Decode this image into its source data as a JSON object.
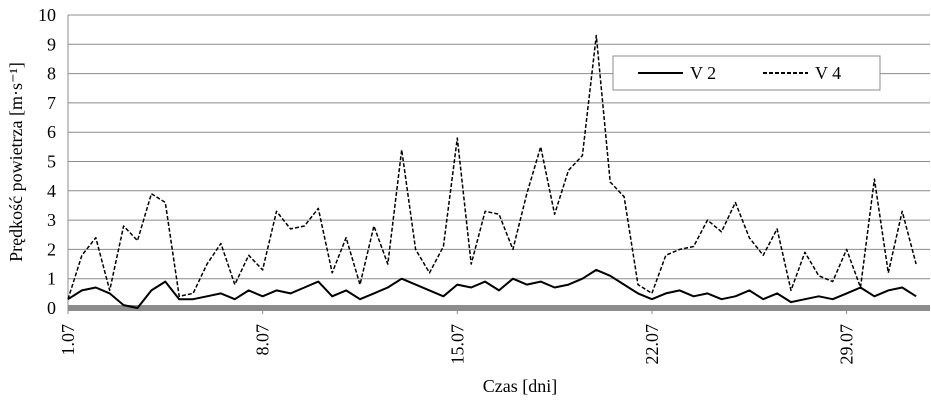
{
  "chart_data": {
    "type": "line",
    "x_label": "Czas [dni]",
    "y_label": "Prędkość powietrza [m·s⁻¹]",
    "x": [
      1,
      1.5,
      2,
      2.5,
      3,
      3.5,
      4,
      4.5,
      5,
      5.5,
      6,
      6.5,
      7,
      7.5,
      8,
      8.5,
      9,
      9.5,
      10,
      10.5,
      11,
      11.5,
      12,
      12.5,
      13,
      13.5,
      14,
      14.5,
      15,
      15.5,
      16,
      16.5,
      17,
      17.5,
      18,
      18.5,
      19,
      19.5,
      20,
      20.5,
      21,
      21.5,
      22,
      22.5,
      23,
      23.5,
      24,
      24.5,
      25,
      25.5,
      26,
      26.5,
      27,
      27.5,
      28,
      28.5,
      29,
      29.5,
      30,
      30.5,
      31,
      31.5
    ],
    "series": [
      {
        "name": "V 2",
        "color": "#000000",
        "dash": false,
        "values": [
          0.3,
          0.6,
          0.7,
          0.5,
          0.1,
          0.0,
          0.6,
          0.9,
          0.3,
          0.3,
          0.4,
          0.5,
          0.3,
          0.6,
          0.4,
          0.6,
          0.5,
          0.7,
          0.9,
          0.4,
          0.6,
          0.3,
          0.5,
          0.7,
          1.0,
          0.8,
          0.6,
          0.4,
          0.8,
          0.7,
          0.9,
          0.6,
          1.0,
          0.8,
          0.9,
          0.7,
          0.8,
          1.0,
          1.3,
          1.1,
          0.8,
          0.5,
          0.3,
          0.5,
          0.6,
          0.4,
          0.5,
          0.3,
          0.4,
          0.6,
          0.3,
          0.5,
          0.2,
          0.3,
          0.4,
          0.3,
          0.5,
          0.7,
          0.4,
          0.6,
          0.7,
          0.4
        ]
      },
      {
        "name": "V 4",
        "color": "#000000",
        "dash": true,
        "values": [
          0.3,
          1.8,
          2.4,
          0.6,
          2.8,
          2.3,
          3.9,
          3.6,
          0.4,
          0.5,
          1.5,
          2.2,
          0.8,
          1.8,
          1.3,
          3.3,
          2.7,
          2.8,
          3.4,
          1.2,
          2.4,
          0.8,
          2.8,
          1.5,
          5.4,
          2.0,
          1.2,
          2.1,
          5.8,
          1.5,
          3.3,
          3.2,
          2.0,
          3.9,
          5.5,
          3.2,
          4.7,
          5.2,
          9.3,
          4.3,
          3.8,
          0.8,
          0.5,
          1.8,
          2.0,
          2.1,
          3.0,
          2.6,
          3.6,
          2.4,
          1.8,
          2.7,
          0.6,
          1.9,
          1.1,
          0.9,
          2.0,
          0.7,
          4.4,
          1.2,
          3.3,
          1.5
        ]
      }
    ],
    "xlim": [
      1,
      32
    ],
    "xticks": [
      {
        "value": 1,
        "label": "1.07"
      },
      {
        "value": 8,
        "label": "8.07"
      },
      {
        "value": 15,
        "label": "15.07"
      },
      {
        "value": 22,
        "label": "22.07"
      },
      {
        "value": 29,
        "label": "29.07"
      }
    ],
    "ylim": [
      0,
      10
    ],
    "yticks": [
      0,
      1,
      2,
      3,
      4,
      5,
      6,
      7,
      8,
      9,
      10
    ],
    "grid": true,
    "legend": "top-right"
  }
}
